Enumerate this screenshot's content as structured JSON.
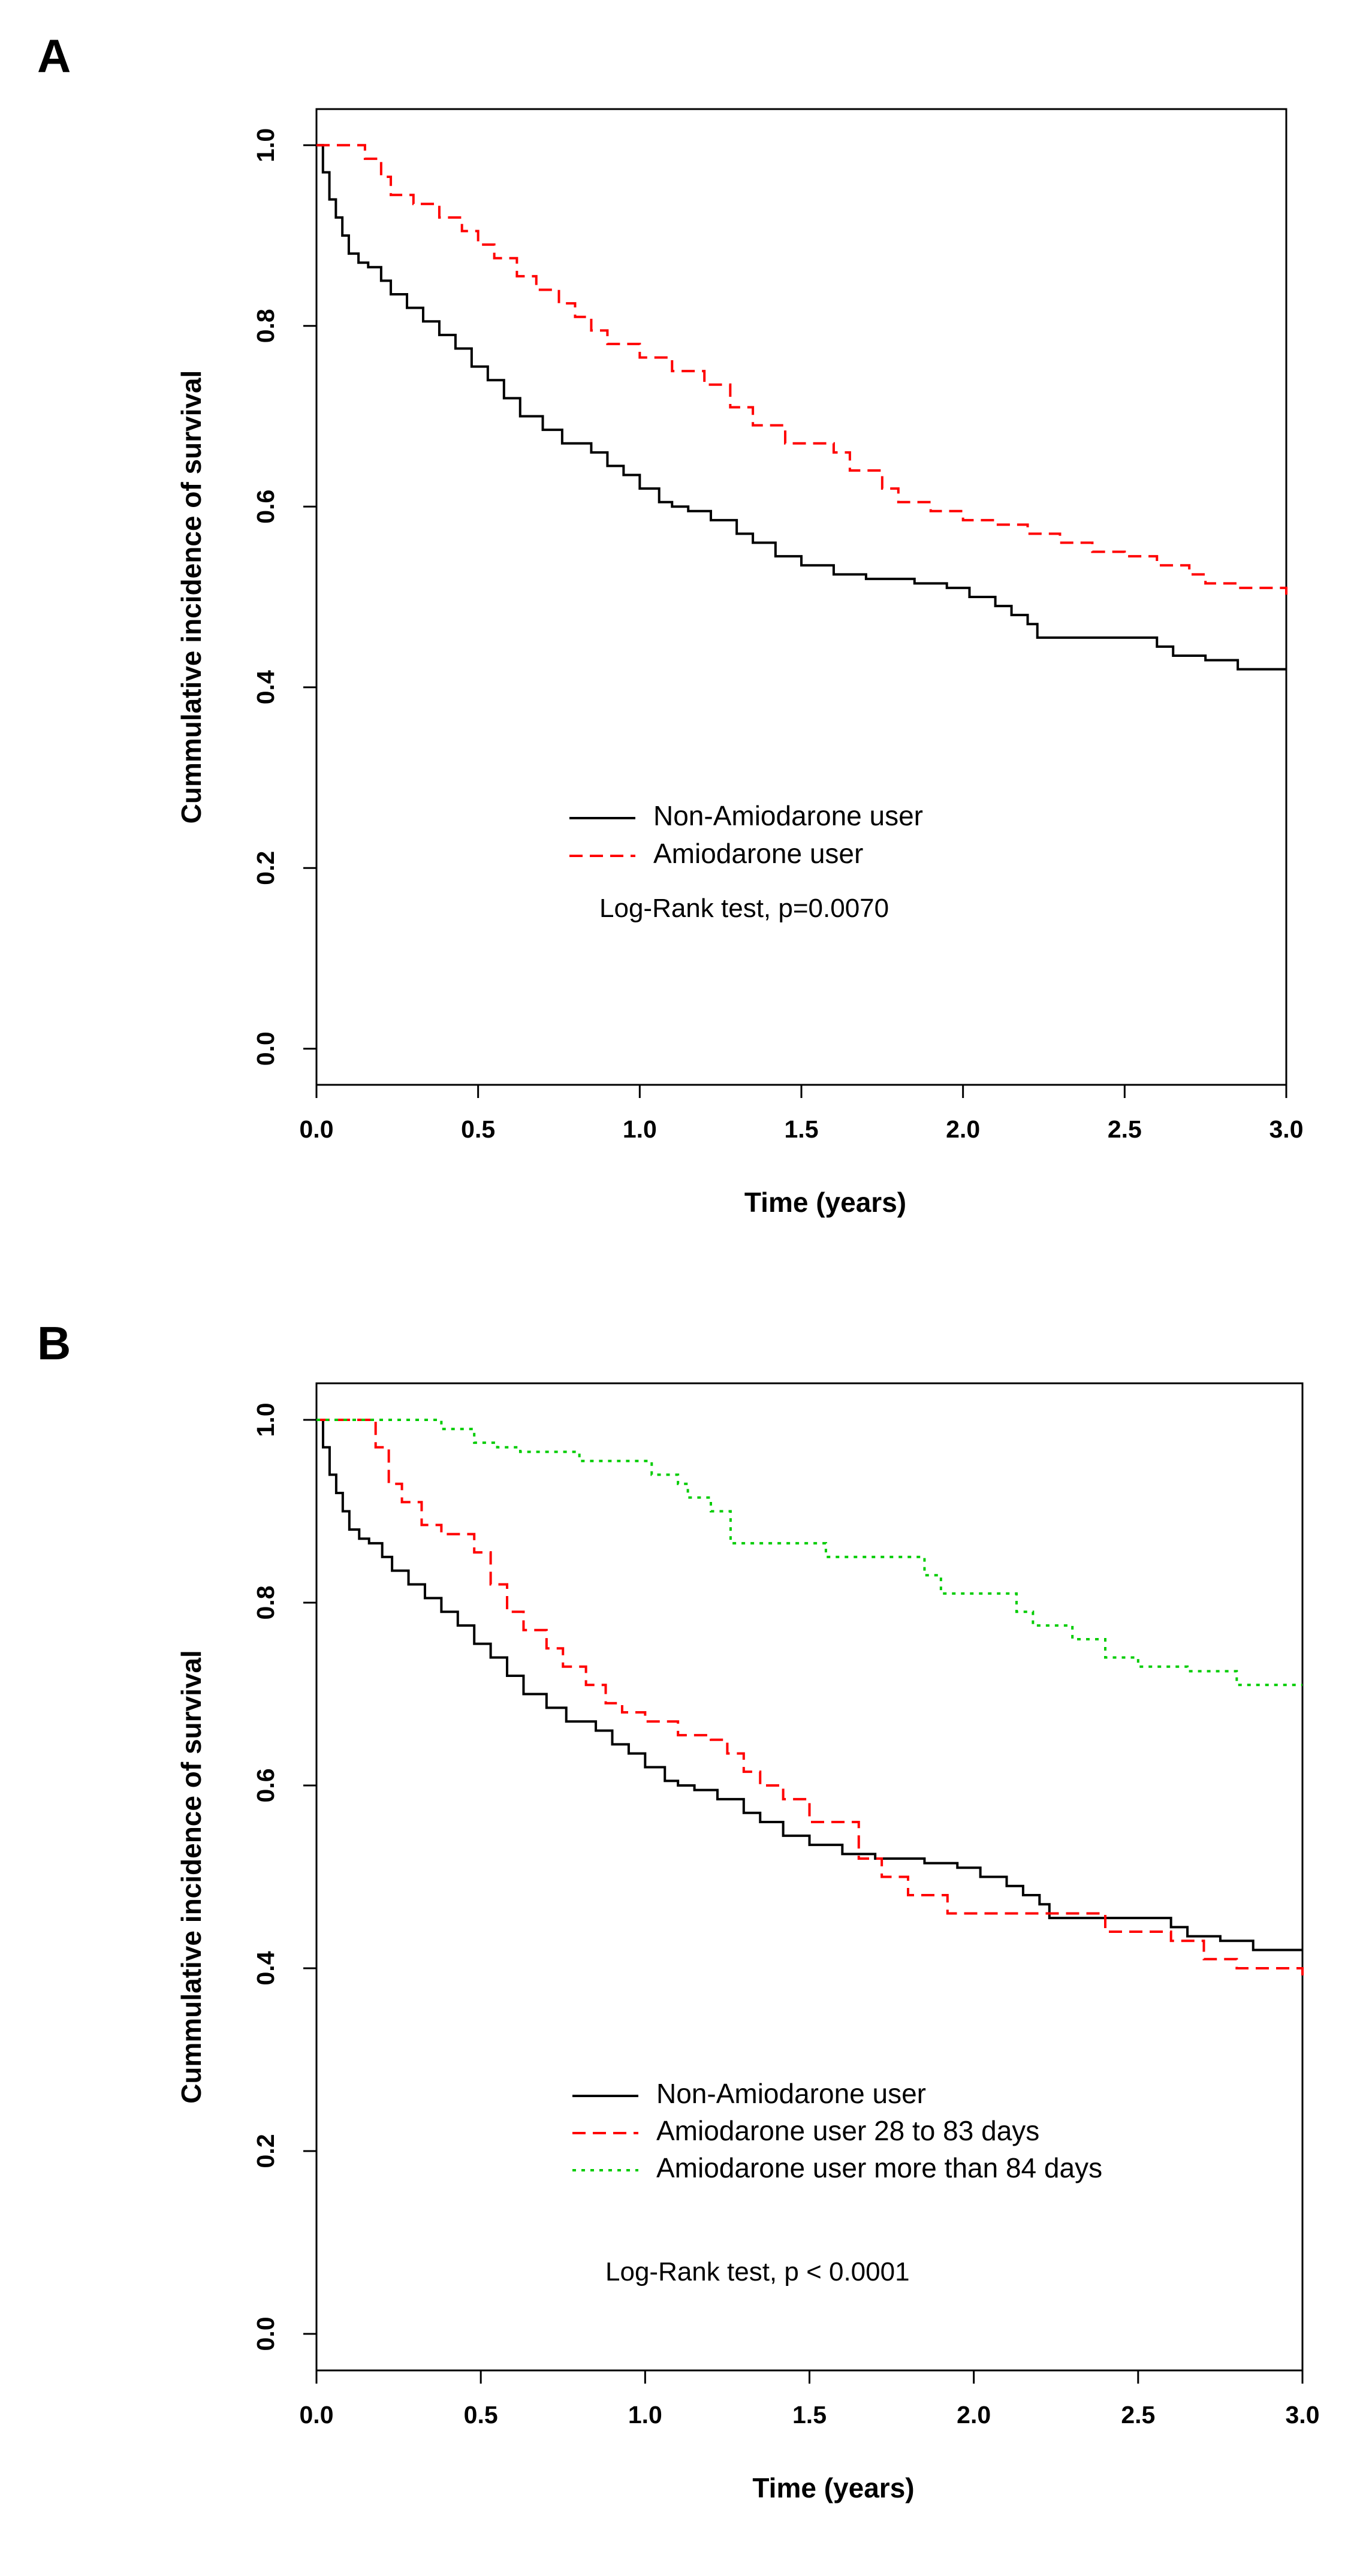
{
  "chart_data": [
    {
      "panel": "A",
      "type": "line",
      "step": true,
      "xlabel": "Time (years)",
      "ylabel": "Cummulative incidence of survival",
      "xlim": [
        0,
        3.0
      ],
      "ylim": [
        -0.04,
        1.04
      ],
      "xticks": [
        "0.0",
        "0.5",
        "1.0",
        "1.5",
        "2.0",
        "2.5",
        "3.0"
      ],
      "yticks": [
        "0.0",
        "0.2",
        "0.4",
        "0.6",
        "0.8",
        "1.0"
      ],
      "annotation": "Log-Rank test, p=0.0070",
      "legend_position": "center",
      "series": [
        {
          "name": "Non-Amiodarone user",
          "color": "#000000",
          "dash": "solid",
          "x": [
            0,
            0.02,
            0.04,
            0.06,
            0.08,
            0.1,
            0.13,
            0.16,
            0.2,
            0.23,
            0.28,
            0.33,
            0.38,
            0.43,
            0.48,
            0.53,
            0.58,
            0.63,
            0.7,
            0.76,
            0.85,
            0.9,
            0.95,
            1.0,
            1.06,
            1.1,
            1.15,
            1.22,
            1.3,
            1.35,
            1.42,
            1.5,
            1.6,
            1.7,
            1.85,
            1.95,
            2.02,
            2.1,
            2.15,
            2.2,
            2.23,
            2.3,
            2.55,
            2.6,
            2.65,
            2.75,
            2.85,
            3.0
          ],
          "y": [
            1.0,
            0.97,
            0.94,
            0.92,
            0.9,
            0.88,
            0.87,
            0.865,
            0.85,
            0.835,
            0.82,
            0.805,
            0.79,
            0.775,
            0.755,
            0.74,
            0.72,
            0.7,
            0.685,
            0.67,
            0.66,
            0.645,
            0.635,
            0.62,
            0.605,
            0.6,
            0.595,
            0.585,
            0.57,
            0.56,
            0.545,
            0.535,
            0.525,
            0.52,
            0.515,
            0.51,
            0.5,
            0.49,
            0.48,
            0.47,
            0.455,
            0.455,
            0.455,
            0.445,
            0.435,
            0.43,
            0.42,
            0.42
          ]
        },
        {
          "name": "Amiodarone user",
          "color": "#ff0000",
          "dash": "dashed",
          "x": [
            0,
            0.08,
            0.15,
            0.2,
            0.23,
            0.3,
            0.38,
            0.45,
            0.5,
            0.55,
            0.62,
            0.68,
            0.75,
            0.8,
            0.85,
            0.9,
            1.0,
            1.1,
            1.2,
            1.28,
            1.35,
            1.45,
            1.6,
            1.65,
            1.75,
            1.8,
            1.9,
            2.0,
            2.1,
            2.2,
            2.3,
            2.4,
            2.5,
            2.6,
            2.7,
            2.75,
            2.85,
            3.0
          ],
          "y": [
            1.0,
            1.0,
            0.985,
            0.965,
            0.945,
            0.935,
            0.92,
            0.905,
            0.89,
            0.875,
            0.855,
            0.84,
            0.825,
            0.81,
            0.795,
            0.78,
            0.765,
            0.75,
            0.735,
            0.71,
            0.69,
            0.67,
            0.66,
            0.64,
            0.62,
            0.605,
            0.595,
            0.585,
            0.58,
            0.57,
            0.56,
            0.55,
            0.545,
            0.535,
            0.525,
            0.515,
            0.51,
            0.5
          ]
        }
      ]
    },
    {
      "panel": "B",
      "type": "line",
      "step": true,
      "xlabel": "Time (years)",
      "ylabel": "Cummulative incidence of survival",
      "xlim": [
        0,
        3.0
      ],
      "ylim": [
        -0.04,
        1.04
      ],
      "xticks": [
        "0.0",
        "0.5",
        "1.0",
        "1.5",
        "2.0",
        "2.5",
        "3.0"
      ],
      "yticks": [
        "0.0",
        "0.2",
        "0.4",
        "0.6",
        "0.8",
        "1.0"
      ],
      "annotation": "Log-Rank test, p < 0.0001",
      "legend_position": "bottom-center",
      "series": [
        {
          "name": "Non-Amiodarone user",
          "color": "#000000",
          "dash": "solid",
          "x": [
            0,
            0.02,
            0.04,
            0.06,
            0.08,
            0.1,
            0.13,
            0.16,
            0.2,
            0.23,
            0.28,
            0.33,
            0.38,
            0.43,
            0.48,
            0.53,
            0.58,
            0.63,
            0.7,
            0.76,
            0.85,
            0.9,
            0.95,
            1.0,
            1.06,
            1.1,
            1.15,
            1.22,
            1.3,
            1.35,
            1.42,
            1.5,
            1.6,
            1.7,
            1.85,
            1.95,
            2.02,
            2.1,
            2.15,
            2.2,
            2.23,
            2.3,
            2.55,
            2.6,
            2.65,
            2.75,
            2.85,
            3.0
          ],
          "y": [
            1.0,
            0.97,
            0.94,
            0.92,
            0.9,
            0.88,
            0.87,
            0.865,
            0.85,
            0.835,
            0.82,
            0.805,
            0.79,
            0.775,
            0.755,
            0.74,
            0.72,
            0.7,
            0.685,
            0.67,
            0.66,
            0.645,
            0.635,
            0.62,
            0.605,
            0.6,
            0.595,
            0.585,
            0.57,
            0.56,
            0.545,
            0.535,
            0.525,
            0.52,
            0.515,
            0.51,
            0.5,
            0.49,
            0.48,
            0.47,
            0.455,
            0.455,
            0.455,
            0.445,
            0.435,
            0.43,
            0.42,
            0.42
          ]
        },
        {
          "name": "Amiodarone user 28 to 83 days",
          "color": "#ff0000",
          "dash": "dashed",
          "x": [
            0,
            0.13,
            0.18,
            0.22,
            0.26,
            0.32,
            0.38,
            0.48,
            0.53,
            0.58,
            0.63,
            0.7,
            0.75,
            0.82,
            0.88,
            0.93,
            1.0,
            1.1,
            1.2,
            1.25,
            1.3,
            1.35,
            1.42,
            1.5,
            1.65,
            1.72,
            1.8,
            1.92,
            2.15,
            2.4,
            2.6,
            2.7,
            2.8,
            3.0
          ],
          "y": [
            1.0,
            1.0,
            0.97,
            0.93,
            0.91,
            0.885,
            0.875,
            0.855,
            0.82,
            0.79,
            0.77,
            0.75,
            0.73,
            0.71,
            0.69,
            0.68,
            0.67,
            0.655,
            0.65,
            0.635,
            0.615,
            0.6,
            0.585,
            0.56,
            0.52,
            0.5,
            0.48,
            0.46,
            0.46,
            0.44,
            0.43,
            0.41,
            0.4,
            0.385
          ]
        },
        {
          "name": "Amiodarone user more than 84 days",
          "color": "#00cc00",
          "dash": "dotted",
          "x": [
            0,
            0.38,
            0.48,
            0.55,
            0.62,
            0.8,
            1.02,
            1.1,
            1.13,
            1.2,
            1.26,
            1.55,
            1.85,
            1.9,
            2.13,
            2.18,
            2.3,
            2.4,
            2.5,
            2.65,
            2.8,
            3.0
          ],
          "y": [
            1.0,
            0.99,
            0.975,
            0.97,
            0.965,
            0.955,
            0.94,
            0.93,
            0.915,
            0.9,
            0.865,
            0.85,
            0.83,
            0.81,
            0.79,
            0.775,
            0.76,
            0.74,
            0.73,
            0.725,
            0.71,
            0.71
          ]
        }
      ]
    }
  ]
}
